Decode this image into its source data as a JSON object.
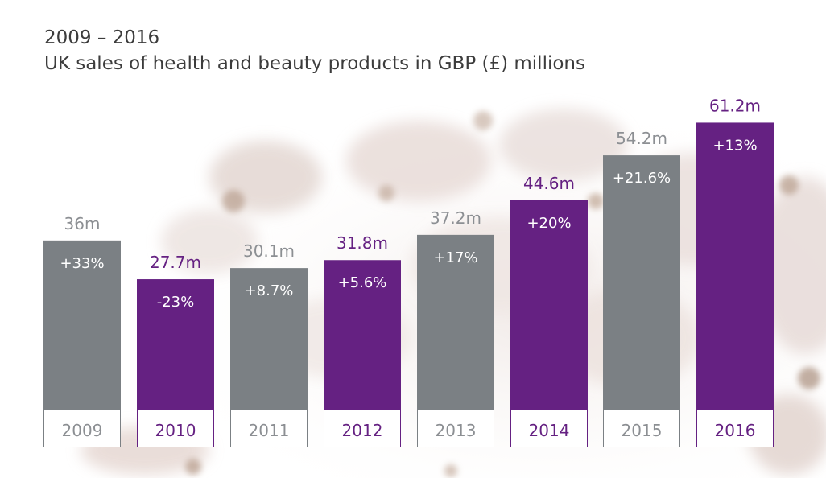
{
  "title": "2009 – 2016",
  "subtitle": "UK sales of health and beauty products in GBP (£) millions",
  "colors": {
    "grey_bar": "#7b8084",
    "purple_bar": "#652182",
    "grey_text": "#8c8f93",
    "purple_text": "#652182"
  },
  "chart_data": {
    "type": "bar",
    "title": "UK sales of health and beauty products in GBP (£) millions",
    "categories": [
      "2009",
      "2010",
      "2011",
      "2012",
      "2013",
      "2014",
      "2015",
      "2016"
    ],
    "values": [
      36,
      27.7,
      30.1,
      31.8,
      37.2,
      44.6,
      54.2,
      61.2
    ],
    "value_labels": [
      "36m",
      "27.7m",
      "30.1m",
      "31.8m",
      "37.2m",
      "44.6m",
      "54.2m",
      "61.2m"
    ],
    "change_labels": [
      "+33%",
      "-23%",
      "+8.7%",
      "+5.6%",
      "+17%",
      "+20%",
      "+21.6%",
      "+13%"
    ],
    "bar_colors": [
      "grey",
      "purple",
      "grey",
      "purple",
      "grey",
      "purple",
      "grey",
      "purple"
    ],
    "unit": "GBP (£) millions",
    "grid": false,
    "legend": "none"
  }
}
